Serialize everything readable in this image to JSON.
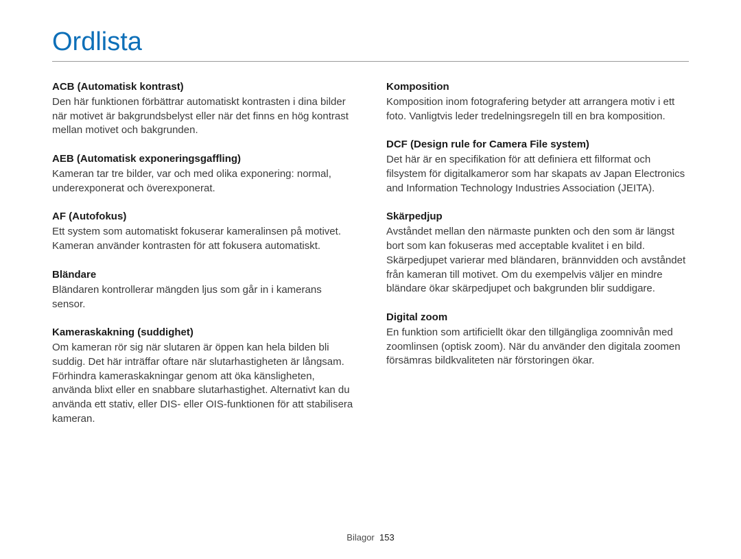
{
  "title": "Ordlista",
  "title_color": "#0d6fb8",
  "rule_color": "#9a9a9a",
  "text_color": "#3a3a3a",
  "term_color": "#1a1a1a",
  "background_color": "#ffffff",
  "font_sizes": {
    "title": 38,
    "term": 15,
    "def": 15,
    "footer": 13
  },
  "columns": {
    "left": [
      {
        "term": "ACB (Automatisk kontrast)",
        "def": "Den här funktionen förbättrar automatiskt kontrasten i dina bilder när motivet är bakgrundsbelyst eller när det finns en hög kontrast mellan motivet och bakgrunden."
      },
      {
        "term": "AEB (Automatisk exponeringsgaffling)",
        "def": "Kameran tar tre bilder, var och med olika exponering: normal, underexponerat och överexponerat."
      },
      {
        "term": "AF (Autofokus)",
        "def": "Ett system som automatiskt fokuserar kameralinsen på motivet. Kameran använder kontrasten för att fokusera automatiskt."
      },
      {
        "term": "Bländare",
        "def": "Bländaren kontrollerar mängden ljus som går in i kamerans sensor."
      },
      {
        "term": "Kameraskakning (suddighet)",
        "def": "Om kameran rör sig när slutaren är öppen kan hela bilden bli suddig. Det här inträffar oftare när slutarhastigheten är långsam. Förhindra kameraskakningar genom att öka känsligheten, använda blixt eller en snabbare slutarhastighet. Alternativt kan du använda ett stativ, eller DIS- eller OIS-funktionen för att stabilisera kameran."
      }
    ],
    "right": [
      {
        "term": "Komposition",
        "def": "Komposition inom fotografering betyder att arrangera motiv i ett foto. Vanligtvis leder tredelningsregeln till en bra komposition."
      },
      {
        "term": "DCF (Design rule for Camera File system)",
        "def": "Det här är en specifikation för att definiera ett filformat och filsystem för digitalkameror som har skapats av Japan Electronics and Information Technology Industries Association (JEITA)."
      },
      {
        "term": "Skärpedjup",
        "def": "Avståndet mellan den närmaste punkten och den som är längst bort som kan fokuseras med acceptable kvalitet i en bild. Skärpedjupet varierar med bländaren, brännvidden och avståndet från kameran till motivet. Om du exempelvis väljer en mindre bländare ökar skärpedjupet och bakgrunden blir suddigare."
      },
      {
        "term": "Digital zoom",
        "def": "En funktion som artificiellt ökar den tillgängliga zoomnivån med zoomlinsen (optisk zoom). När du använder den digitala zoomen försämras bildkvaliteten när förstoringen ökar."
      }
    ]
  },
  "footer": {
    "section": "Bilagor",
    "page_number": "153"
  }
}
